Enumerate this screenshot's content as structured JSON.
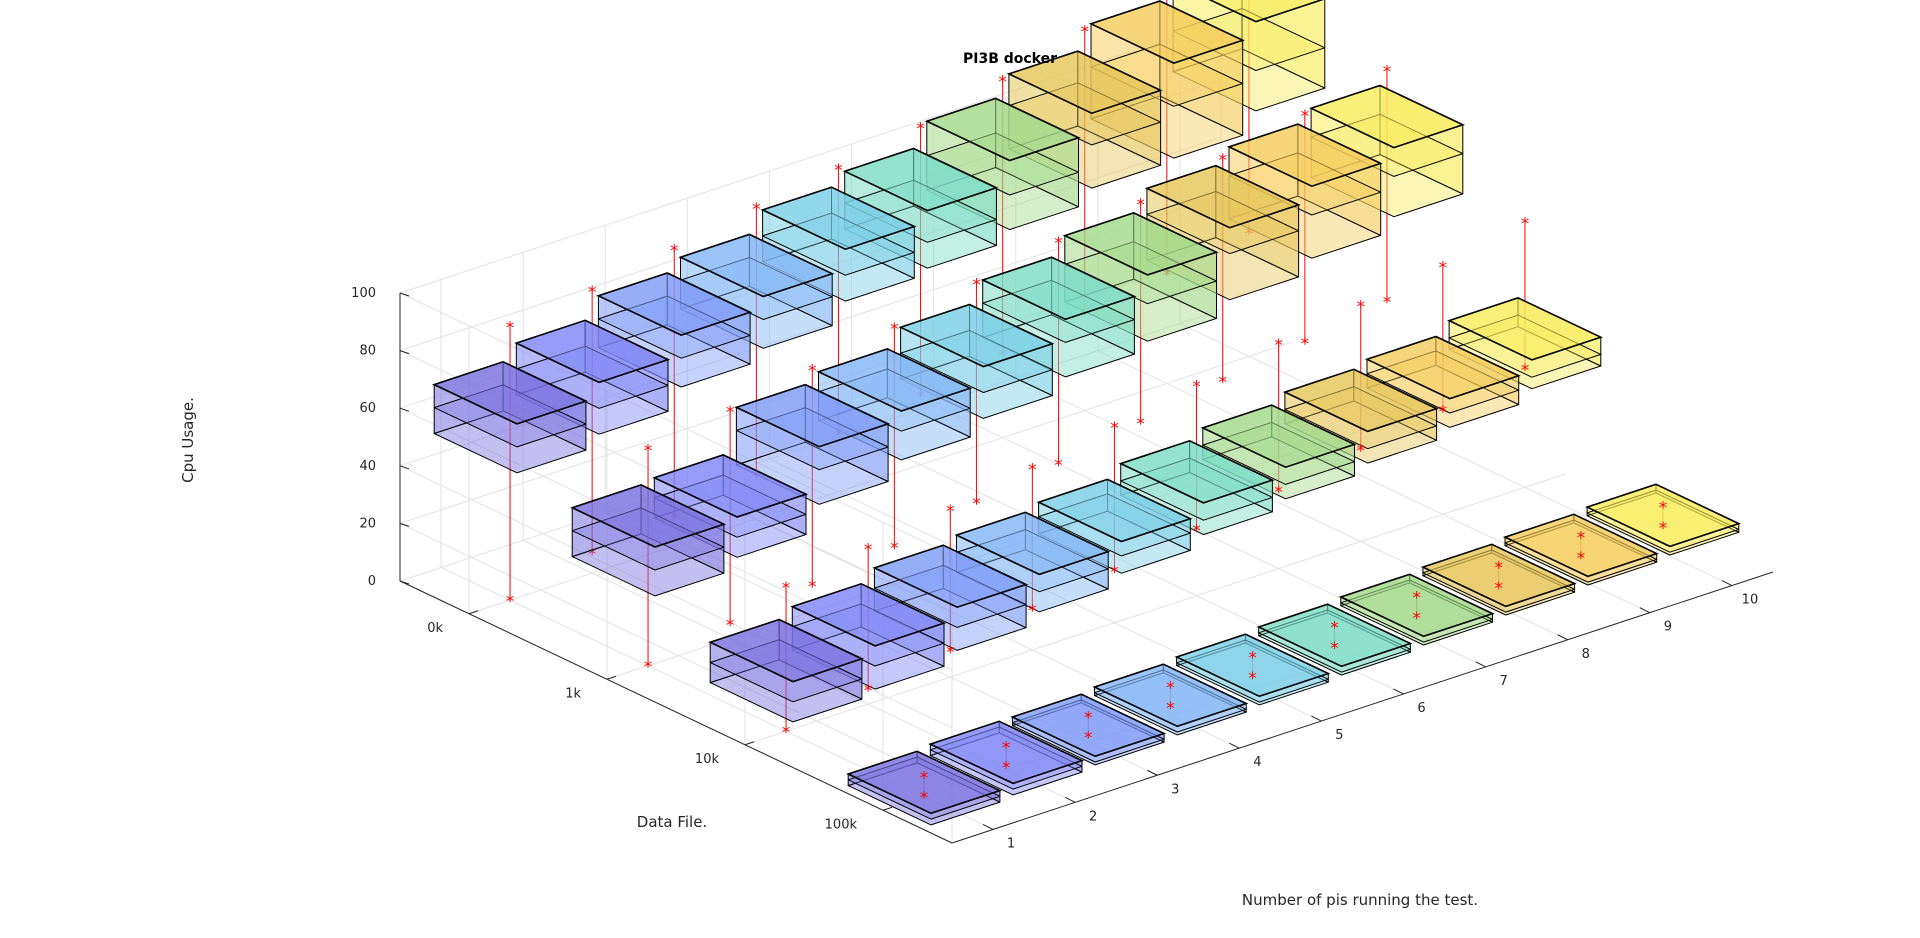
{
  "chart_data": {
    "type": "3d-boxplot",
    "title": "PI3B docker",
    "xlabel": "Number of pis running the test.",
    "ylabel": "Data File.",
    "zlabel": "Cpu Usage.",
    "x_categories": [
      "1",
      "2",
      "3",
      "4",
      "5",
      "6",
      "7",
      "8",
      "9",
      "10"
    ],
    "y_categories": [
      "0k",
      "1k",
      "10k",
      "100k"
    ],
    "zlim": [
      0,
      100
    ],
    "z_ticks": [
      0,
      20,
      40,
      60,
      80,
      100
    ],
    "grid": true,
    "colors": [
      "#7a72e0",
      "#7e86f5",
      "#7f9bf7",
      "#83b6f5",
      "#7ccfe6",
      "#7ddcc5",
      "#a4d98a",
      "#e6c65a",
      "#f5cd5e",
      "#f7ec5b"
    ],
    "series": [
      {
        "name": "0k",
        "boxes": [
          {
            "x": 1,
            "min": 0,
            "q1": 55,
            "median": 64,
            "q3": 72,
            "max": 95
          },
          {
            "x": 2,
            "min": 7,
            "q1": 59,
            "median": 68,
            "q3": 77,
            "max": 98
          },
          {
            "x": 3,
            "min": 10,
            "q1": 66,
            "median": 76,
            "q3": 84,
            "max": 103
          },
          {
            "x": 4,
            "min": 15,
            "q1": 70,
            "median": 80,
            "q3": 88,
            "max": 108
          },
          {
            "x": 5,
            "min": 20,
            "q1": 77,
            "median": 86,
            "q3": 95,
            "max": 112
          },
          {
            "x": 6,
            "min": 24,
            "q1": 79,
            "median": 88,
            "q3": 99,
            "max": 117
          },
          {
            "x": 7,
            "min": 29,
            "q1": 83,
            "median": 95,
            "q3": 107,
            "max": 124
          },
          {
            "x": 8,
            "min": 34,
            "q1": 88,
            "median": 103,
            "q3": 114,
            "max": 132
          },
          {
            "x": 9,
            "min": 38,
            "q1": 89,
            "median": 107,
            "q3": 122,
            "max": 136
          },
          {
            "x": 10,
            "min": 43,
            "q1": 96,
            "median": 110,
            "q3": 127,
            "max": 143
          }
        ]
      },
      {
        "name": "1k",
        "boxes": [
          {
            "x": 1,
            "min": 0,
            "q1": 35,
            "median": 44,
            "q3": 52,
            "max": 75
          },
          {
            "x": 2,
            "min": 5,
            "q1": 39,
            "median": 46,
            "q3": 53,
            "max": 79
          },
          {
            "x": 3,
            "min": 9,
            "q1": 48,
            "median": 60,
            "q3": 68,
            "max": 84
          },
          {
            "x": 4,
            "min": 13,
            "q1": 54,
            "median": 64,
            "q3": 71,
            "max": 89
          },
          {
            "x": 5,
            "min": 19,
            "q1": 59,
            "median": 68,
            "q3": 77,
            "max": 95
          },
          {
            "x": 6,
            "min": 23,
            "q1": 64,
            "median": 76,
            "q3": 84,
            "max": 100
          },
          {
            "x": 7,
            "min": 28,
            "q1": 67,
            "median": 80,
            "q3": 90,
            "max": 104
          },
          {
            "x": 8,
            "min": 33,
            "q1": 72,
            "median": 88,
            "q3": 97,
            "max": 110
          },
          {
            "x": 9,
            "min": 37,
            "q1": 77,
            "median": 92,
            "q3": 102,
            "max": 116
          },
          {
            "x": 10,
            "min": 42,
            "q1": 82,
            "median": 96,
            "q3": 106,
            "max": 122
          }
        ]
      },
      {
        "name": "10k",
        "boxes": [
          {
            "x": 1,
            "min": 0,
            "q1": 14,
            "median": 21,
            "q3": 28,
            "max": 50
          },
          {
            "x": 2,
            "min": 5,
            "q1": 16,
            "median": 24,
            "q3": 31,
            "max": 54
          },
          {
            "x": 3,
            "min": 9,
            "q1": 20,
            "median": 28,
            "q3": 35,
            "max": 58
          },
          {
            "x": 4,
            "min": 14,
            "q1": 24,
            "median": 31,
            "q3": 37,
            "max": 63
          },
          {
            "x": 5,
            "min": 18,
            "q1": 28,
            "median": 34,
            "q3": 39,
            "max": 68
          },
          {
            "x": 6,
            "min": 23,
            "q1": 32,
            "median": 37,
            "q3": 43,
            "max": 73
          },
          {
            "x": 7,
            "min": 27,
            "q1": 35,
            "median": 40,
            "q3": 46,
            "max": 78
          },
          {
            "x": 8,
            "min": 32,
            "q1": 38,
            "median": 43,
            "q3": 49,
            "max": 82
          },
          {
            "x": 9,
            "min": 36,
            "q1": 41,
            "median": 46,
            "q3": 51,
            "max": 86
          },
          {
            "x": 10,
            "min": 41,
            "q1": 45,
            "median": 49,
            "q3": 55,
            "max": 92
          }
        ]
      },
      {
        "name": "100k",
        "boxes": [
          {
            "x": 1,
            "min": 0,
            "q1": 1,
            "median": 3,
            "q3": 5,
            "max": 7
          },
          {
            "x": 2,
            "min": 1,
            "q1": 2,
            "median": 4,
            "q3": 6,
            "max": 8
          },
          {
            "x": 3,
            "min": 2,
            "q1": 3,
            "median": 4,
            "q3": 6,
            "max": 9
          },
          {
            "x": 4,
            "min": 3,
            "q1": 4,
            "median": 5,
            "q3": 7,
            "max": 10
          },
          {
            "x": 5,
            "min": 4,
            "q1": 5,
            "median": 6,
            "q3": 8,
            "max": 11
          },
          {
            "x": 6,
            "min": 5,
            "q1": 6,
            "median": 7,
            "q3": 9,
            "max": 12
          },
          {
            "x": 7,
            "min": 6,
            "q1": 7,
            "median": 8,
            "q3": 10,
            "max": 13
          },
          {
            "x": 8,
            "min": 7,
            "q1": 8,
            "median": 9,
            "q3": 11,
            "max": 14
          },
          {
            "x": 9,
            "min": 8,
            "q1": 9,
            "median": 10,
            "q3": 12,
            "max": 15
          },
          {
            "x": 10,
            "min": 9,
            "q1": 10,
            "median": 11,
            "q3": 13,
            "max": 16
          }
        ]
      }
    ]
  }
}
